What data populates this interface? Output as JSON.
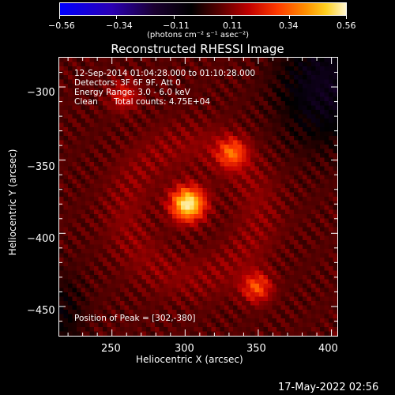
{
  "colorbar": {
    "tick_labels": [
      "−0.56",
      "−0.34",
      "−0.11",
      "0.11",
      "0.34",
      "0.56"
    ],
    "unit_label": "(photons cm⁻² s⁻¹ asec⁻²)"
  },
  "plot": {
    "title": "Reconstructed RHESSI Image",
    "xlabel": "Heliocentric X (arcsec)",
    "ylabel": "Heliocentric Y (arcsec)",
    "x_tick_labels": [
      "250",
      "300",
      "350",
      "400"
    ],
    "y_tick_labels": [
      "−300",
      "−350",
      "−400",
      "−450"
    ],
    "annotations": {
      "time_range": "12-Sep-2014 01:04:28.000 to 01:10:28.000",
      "detectors": "Detectors: 3F 6F 9F, Att 0",
      "energy_range": "Energy Range: 3.0 - 6.0 keV",
      "method": "Clean",
      "total_counts": "Total counts: 4.75E+04",
      "peak_position": "Position of Peak = [302,-380]"
    }
  },
  "footer": {
    "date_stamp": "17-May-2022 02:56"
  },
  "chart_data": {
    "type": "heatmap",
    "title": "Reconstructed RHESSI Image",
    "xlabel": "Heliocentric X (arcsec)",
    "ylabel": "Heliocentric Y (arcsec)",
    "xlim": [
      214,
      404
    ],
    "ylim": [
      -470,
      -280
    ],
    "colorbar_range": [
      -0.56,
      0.56
    ],
    "colormap": "blue-black-red-yellow-white",
    "sources": [
      {
        "x": 302,
        "y": -380,
        "peak": 0.56
      },
      {
        "x": 332,
        "y": -345,
        "peak": 0.3
      },
      {
        "x": 349,
        "y": -437,
        "peak": 0.3
      },
      {
        "x": 258,
        "y": -306,
        "peak": 0.22
      }
    ]
  }
}
